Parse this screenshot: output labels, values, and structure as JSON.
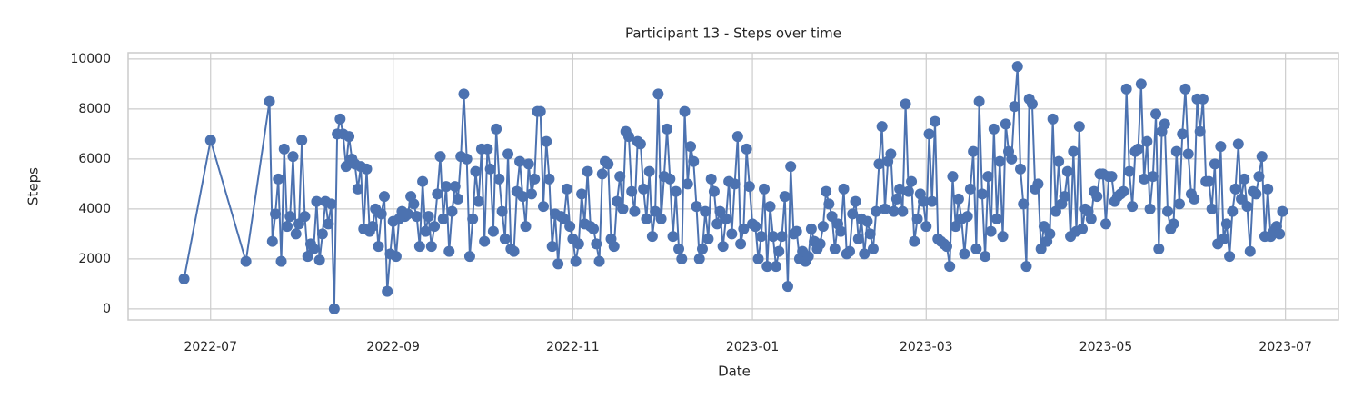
{
  "chart_data": {
    "type": "line",
    "title": "Participant 13 - Steps over time",
    "x_label": "Date",
    "y_label": "Steps",
    "color": "#4c72b0",
    "grid": true,
    "xlim": [
      "2022-06-03",
      "2023-07-19"
    ],
    "xticks": [
      {
        "value": "2022-07-01",
        "label": "2022-07"
      },
      {
        "value": "2022-09-01",
        "label": "2022-09"
      },
      {
        "value": "2022-11-01",
        "label": "2022-11"
      },
      {
        "value": "2023-01-01",
        "label": "2023-01"
      },
      {
        "value": "2023-03-01",
        "label": "2023-03"
      },
      {
        "value": "2023-05-01",
        "label": "2023-05"
      },
      {
        "value": "2023-07-01",
        "label": "2023-07"
      }
    ],
    "ylim": [
      -440,
      10250
    ],
    "yticks": [
      0,
      2000,
      4000,
      6000,
      8000,
      10000
    ],
    "x": [
      "2022-06-22",
      "2022-07-01",
      "2022-07-13",
      "2022-07-21",
      "2022-07-22",
      "2022-07-23",
      "2022-07-24",
      "2022-07-25",
      "2022-07-26",
      "2022-07-27",
      "2022-07-28",
      "2022-07-29",
      "2022-07-30",
      "2022-07-31",
      "2022-08-01",
      "2022-08-02",
      "2022-08-03",
      "2022-08-04",
      "2022-08-05",
      "2022-08-06",
      "2022-08-07",
      "2022-08-08",
      "2022-08-09",
      "2022-08-10",
      "2022-08-11",
      "2022-08-12",
      "2022-08-13",
      "2022-08-14",
      "2022-08-15",
      "2022-08-16",
      "2022-08-17",
      "2022-08-18",
      "2022-08-19",
      "2022-08-20",
      "2022-08-21",
      "2022-08-22",
      "2022-08-23",
      "2022-08-24",
      "2022-08-25",
      "2022-08-26",
      "2022-08-27",
      "2022-08-28",
      "2022-08-29",
      "2022-08-30",
      "2022-08-31",
      "2022-09-01",
      "2022-09-02",
      "2022-09-03",
      "2022-09-04",
      "2022-09-05",
      "2022-09-06",
      "2022-09-07",
      "2022-09-08",
      "2022-09-09",
      "2022-09-10",
      "2022-09-11",
      "2022-09-12",
      "2022-09-13",
      "2022-09-14",
      "2022-09-15",
      "2022-09-16",
      "2022-09-17",
      "2022-09-18",
      "2022-09-19",
      "2022-09-20",
      "2022-09-21",
      "2022-09-22",
      "2022-09-23",
      "2022-09-24",
      "2022-09-25",
      "2022-09-26",
      "2022-09-27",
      "2022-09-28",
      "2022-09-29",
      "2022-09-30",
      "2022-10-01",
      "2022-10-02",
      "2022-10-03",
      "2022-10-04",
      "2022-10-05",
      "2022-10-06",
      "2022-10-07",
      "2022-10-08",
      "2022-10-09",
      "2022-10-10",
      "2022-10-11",
      "2022-10-12",
      "2022-10-13",
      "2022-10-14",
      "2022-10-15",
      "2022-10-16",
      "2022-10-17",
      "2022-10-18",
      "2022-10-19",
      "2022-10-20",
      "2022-10-21",
      "2022-10-22",
      "2022-10-23",
      "2022-10-24",
      "2022-10-25",
      "2022-10-26",
      "2022-10-27",
      "2022-10-28",
      "2022-10-29",
      "2022-10-30",
      "2022-10-31",
      "2022-11-01",
      "2022-11-02",
      "2022-11-03",
      "2022-11-04",
      "2022-11-05",
      "2022-11-06",
      "2022-11-07",
      "2022-11-08",
      "2022-11-09",
      "2022-11-10",
      "2022-11-11",
      "2022-11-12",
      "2022-11-13",
      "2022-11-14",
      "2022-11-15",
      "2022-11-16",
      "2022-11-17",
      "2022-11-18",
      "2022-11-19",
      "2022-11-20",
      "2022-11-21",
      "2022-11-22",
      "2022-11-23",
      "2022-11-24",
      "2022-11-25",
      "2022-11-26",
      "2022-11-27",
      "2022-11-28",
      "2022-11-29",
      "2022-11-30",
      "2022-12-01",
      "2022-12-02",
      "2022-12-03",
      "2022-12-04",
      "2022-12-05",
      "2022-12-06",
      "2022-12-07",
      "2022-12-08",
      "2022-12-09",
      "2022-12-10",
      "2022-12-11",
      "2022-12-12",
      "2022-12-13",
      "2022-12-14",
      "2022-12-15",
      "2022-12-16",
      "2022-12-17",
      "2022-12-18",
      "2022-12-19",
      "2022-12-20",
      "2022-12-21",
      "2022-12-22",
      "2022-12-23",
      "2022-12-24",
      "2022-12-25",
      "2022-12-26",
      "2022-12-27",
      "2022-12-28",
      "2022-12-29",
      "2022-12-30",
      "2022-12-31",
      "2023-01-01",
      "2023-01-02",
      "2023-01-03",
      "2023-01-04",
      "2023-01-05",
      "2023-01-06",
      "2023-01-07",
      "2023-01-08",
      "2023-01-09",
      "2023-01-10",
      "2023-01-11",
      "2023-01-12",
      "2023-01-13",
      "2023-01-14",
      "2023-01-15",
      "2023-01-16",
      "2023-01-17",
      "2023-01-18",
      "2023-01-19",
      "2023-01-20",
      "2023-01-21",
      "2023-01-22",
      "2023-01-23",
      "2023-01-24",
      "2023-01-25",
      "2023-01-26",
      "2023-01-27",
      "2023-01-28",
      "2023-01-29",
      "2023-01-30",
      "2023-01-31",
      "2023-02-01",
      "2023-02-02",
      "2023-02-03",
      "2023-02-04",
      "2023-02-05",
      "2023-02-06",
      "2023-02-07",
      "2023-02-08",
      "2023-02-09",
      "2023-02-10",
      "2023-02-11",
      "2023-02-12",
      "2023-02-13",
      "2023-02-14",
      "2023-02-15",
      "2023-02-16",
      "2023-02-17",
      "2023-02-18",
      "2023-02-19",
      "2023-02-20",
      "2023-02-21",
      "2023-02-22",
      "2023-02-23",
      "2023-02-24",
      "2023-02-25",
      "2023-02-26",
      "2023-02-27",
      "2023-02-28",
      "2023-03-01",
      "2023-03-02",
      "2023-03-03",
      "2023-03-04",
      "2023-03-05",
      "2023-03-06",
      "2023-03-07",
      "2023-03-08",
      "2023-03-09",
      "2023-03-10",
      "2023-03-11",
      "2023-03-12",
      "2023-03-13",
      "2023-03-14",
      "2023-03-15",
      "2023-03-16",
      "2023-03-17",
      "2023-03-18",
      "2023-03-19",
      "2023-03-20",
      "2023-03-21",
      "2023-03-22",
      "2023-03-23",
      "2023-03-24",
      "2023-03-25",
      "2023-03-26",
      "2023-03-27",
      "2023-03-28",
      "2023-03-29",
      "2023-03-30",
      "2023-03-31",
      "2023-04-01",
      "2023-04-02",
      "2023-04-03",
      "2023-04-04",
      "2023-04-05",
      "2023-04-06",
      "2023-04-07",
      "2023-04-08",
      "2023-04-09",
      "2023-04-10",
      "2023-04-11",
      "2023-04-12",
      "2023-04-13",
      "2023-04-14",
      "2023-04-15",
      "2023-04-16",
      "2023-04-17",
      "2023-04-18",
      "2023-04-19",
      "2023-04-20",
      "2023-04-21",
      "2023-04-22",
      "2023-04-23",
      "2023-04-24",
      "2023-04-25",
      "2023-04-26",
      "2023-04-27",
      "2023-04-28",
      "2023-04-29",
      "2023-04-30",
      "2023-05-01",
      "2023-05-02",
      "2023-05-03",
      "2023-05-04",
      "2023-05-05",
      "2023-05-06",
      "2023-05-07",
      "2023-05-08",
      "2023-05-09",
      "2023-05-10",
      "2023-05-11",
      "2023-05-12",
      "2023-05-13",
      "2023-05-14",
      "2023-05-15",
      "2023-05-16",
      "2023-05-17",
      "2023-05-18",
      "2023-05-19",
      "2023-05-20",
      "2023-05-21",
      "2023-05-22",
      "2023-05-23",
      "2023-05-24",
      "2023-05-25",
      "2023-05-26",
      "2023-05-27",
      "2023-05-28",
      "2023-05-29",
      "2023-05-30",
      "2023-05-31",
      "2023-06-01",
      "2023-06-02",
      "2023-06-03",
      "2023-06-04",
      "2023-06-05",
      "2023-06-06",
      "2023-06-07",
      "2023-06-08",
      "2023-06-09",
      "2023-06-10",
      "2023-06-11",
      "2023-06-12",
      "2023-06-13",
      "2023-06-14",
      "2023-06-15",
      "2023-06-16",
      "2023-06-17",
      "2023-06-18",
      "2023-06-19",
      "2023-06-20",
      "2023-06-21",
      "2023-06-22",
      "2023-06-23",
      "2023-06-24",
      "2023-06-25",
      "2023-06-26",
      "2023-06-27",
      "2023-06-28",
      "2023-06-29",
      "2023-06-30"
    ],
    "values": [
      1200,
      6750,
      1900,
      8300,
      2700,
      3800,
      5200,
      1900,
      6400,
      3300,
      3700,
      6100,
      3000,
      3400,
      6750,
      3700,
      2100,
      2600,
      2400,
      4300,
      1950,
      3000,
      4300,
      3400,
      4200,
      0,
      7000,
      7600,
      7000,
      5700,
      6900,
      6000,
      5800,
      4800,
      5700,
      3200,
      5600,
      3100,
      3300,
      4000,
      2500,
      3800,
      4500,
      700,
      2200,
      3500,
      2100,
      3600,
      3900,
      3700,
      3800,
      4500,
      4200,
      3700,
      2500,
      5100,
      3100,
      3700,
      2500,
      3300,
      4600,
      6100,
      3600,
      4900,
      2300,
      3900,
      4900,
      4400,
      6100,
      8600,
      6000,
      2100,
      3600,
      5500,
      4300,
      6400,
      2700,
      6400,
      5600,
      3100,
      7200,
      5200,
      3900,
      2800,
      6200,
      2400,
      2300,
      4700,
      5900,
      4500,
      3300,
      5800,
      4600,
      5200,
      7900,
      7900,
      4100,
      6700,
      5200,
      2500,
      3800,
      1800,
      3700,
      3600,
      4800,
      3300,
      2800,
      1900,
      2600,
      4600,
      3400,
      5500,
      3300,
      3200,
      2600,
      1900,
      5400,
      5900,
      5800,
      2800,
      2500,
      4300,
      5300,
      4000,
      7100,
      6900,
      4700,
      3900,
      6700,
      6600,
      4800,
      3600,
      5500,
      2900,
      3900,
      8600,
      3600,
      5300,
      7200,
      5200,
      2900,
      4700,
      2400,
      2000,
      7900,
      5000,
      6500,
      5900,
      4100,
      2000,
      2400,
      3900,
      2800,
      5200,
      4700,
      3400,
      3900,
      2500,
      3600,
      5100,
      3000,
      5000,
      6900,
      2600,
      3200,
      6400,
      4900,
      3400,
      3300,
      2000,
      2900,
      4800,
      1700,
      4100,
      2900,
      1700,
      2300,
      2900,
      4500,
      900,
      5700,
      3000,
      3100,
      2000,
      2300,
      1900,
      2100,
      3200,
      2700,
      2400,
      2600,
      3300,
      4700,
      4200,
      3700,
      2400,
      3400,
      3100,
      4800,
      2200,
      2300,
      3800,
      4300,
      2800,
      3600,
      2200,
      3500,
      3000,
      2400,
      3900,
      5800,
      7300,
      4000,
      5900,
      6200,
      3900,
      4400,
      4800,
      3900,
      8200,
      4700,
      5100,
      2700,
      3600,
      4600,
      4300,
      3300,
      7000,
      4300,
      7500,
      2800,
      2700,
      2600,
      2500,
      1700,
      5300,
      3300,
      4400,
      3600,
      2200,
      3700,
      4800,
      6300,
      2400,
      8300,
      4600,
      2100,
      5300,
      3100,
      7200,
      3600,
      5900,
      2900,
      7400,
      6300,
      6000,
      8100,
      9700,
      5600,
      4200,
      1700,
      8400,
      8200,
      4800,
      5000,
      2400,
      3300,
      2700,
      3000,
      7600,
      3900,
      5900,
      4200,
      4500,
      5500,
      2900,
      6300,
      3100,
      7300,
      3200,
      4000,
      3900,
      3600,
      4700,
      4500,
      5400,
      5400,
      3400,
      5300,
      5300,
      4300,
      4500,
      4600,
      4700,
      8800,
      5500,
      4100,
      6300,
      6400,
      9000,
      5200,
      6700,
      4000,
      5300,
      7800,
      2400,
      7100,
      7400,
      3900,
      3200,
      3400,
      6300,
      4200,
      7000,
      8800,
      6200,
      4600,
      4400,
      8400,
      7100,
      8400,
      5100,
      5100,
      4000,
      5800,
      2600,
      6500,
      2800,
      3400,
      2100,
      3900,
      4800,
      6600,
      4400,
      5200,
      4100,
      2300,
      4700,
      4600,
      5300,
      6100,
      2900,
      4800,
      2900,
      3100,
      3300,
      3000,
      3900
    ]
  }
}
